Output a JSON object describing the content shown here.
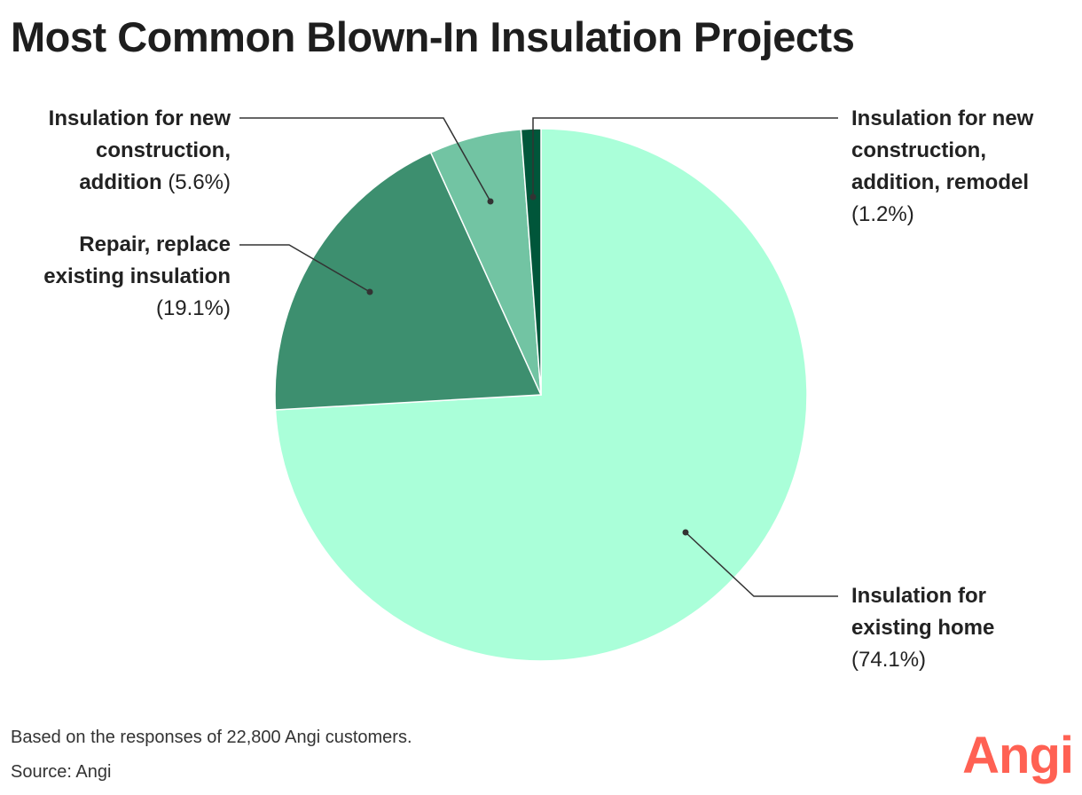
{
  "chart_data": {
    "type": "pie",
    "title": "Most Common Blown-In Insulation Projects",
    "slices": [
      {
        "label": "Insulation for existing home",
        "value": 74.1,
        "display": "(74.1%)",
        "color": "#aaffd9"
      },
      {
        "label": "Repair, replace existing insulation",
        "value": 19.1,
        "display": "(19.1%)",
        "color": "#3d8f6f"
      },
      {
        "label": "Insulation for new construction, addition",
        "value": 5.6,
        "display": "(5.6%)",
        "color": "#72c4a3"
      },
      {
        "label": "Insulation for new construction, addition, remodel",
        "value": 1.2,
        "display": "(1.2%)",
        "color": "#00563a"
      }
    ]
  },
  "labels": {
    "existing_home": {
      "line1": "Insulation for",
      "line2": "existing home",
      "pct": "(74.1%)"
    },
    "repair": {
      "line1": "Repair, replace",
      "line2": "existing insulation",
      "pct": "(19.1%)"
    },
    "new_construction": {
      "line1": "Insulation for new",
      "line2": "construction,",
      "line3": "addition",
      "pct": "(5.6%)"
    },
    "remodel": {
      "line1": "Insulation for new",
      "line2": "construction,",
      "line3": "addition, remodel",
      "pct": "(1.2%)"
    }
  },
  "footer": {
    "note": "Based on the responses of 22,800 Angi customers.",
    "source": "Source: Angi"
  },
  "brand": {
    "logo_text": "Angi",
    "color": "#ff6153"
  }
}
